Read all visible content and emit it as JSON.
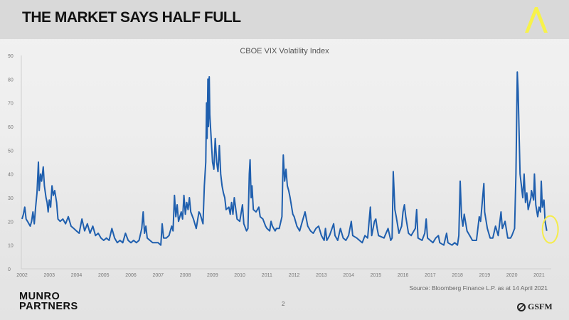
{
  "header": {
    "title": "THE MARKET SAYS HALF FULL"
  },
  "footer": {
    "source": "Source: Bloomberg Finance L.P. as at 14 April 2021",
    "page_number": "2",
    "left_logo": "MUNRO PARTNERS",
    "left_logo_line1": "MUNRO",
    "left_logo_line2": "PARTNERS",
    "right_logo": "GSFM"
  },
  "colors": {
    "line": "#1f5fae",
    "highlight": "#f5ec4a",
    "accent": "#f7f24a"
  },
  "chart_data": {
    "type": "line",
    "title": "CBOE VIX Volatility Index",
    "xlabel": "",
    "ylabel": "",
    "xlim": [
      2002,
      2021.3
    ],
    "ylim": [
      0,
      90
    ],
    "yticks": [
      0,
      10,
      20,
      30,
      40,
      50,
      60,
      70,
      80,
      90
    ],
    "xticks": [
      "2002",
      "2003",
      "2004",
      "2005",
      "2006",
      "2007",
      "2008",
      "2009",
      "2010",
      "2011",
      "2012",
      "2013",
      "2014",
      "2015",
      "2016",
      "2017",
      "2018",
      "2019",
      "2020",
      "2021"
    ],
    "grid": false,
    "annotation": "yellow circle highlighting latest value (April 2021)",
    "series": [
      {
        "name": "VIX",
        "points": [
          [
            2002.0,
            21
          ],
          [
            2002.05,
            23
          ],
          [
            2002.1,
            26
          ],
          [
            2002.15,
            21
          ],
          [
            2002.2,
            20
          ],
          [
            2002.3,
            18
          ],
          [
            2002.35,
            20
          ],
          [
            2002.4,
            24
          ],
          [
            2002.45,
            19
          ],
          [
            2002.5,
            26
          ],
          [
            2002.55,
            32
          ],
          [
            2002.6,
            45
          ],
          [
            2002.63,
            33
          ],
          [
            2002.68,
            40
          ],
          [
            2002.72,
            37
          ],
          [
            2002.78,
            43
          ],
          [
            2002.82,
            35
          ],
          [
            2002.88,
            30
          ],
          [
            2002.92,
            28
          ],
          [
            2002.96,
            24
          ],
          [
            2003.0,
            29
          ],
          [
            2003.05,
            26
          ],
          [
            2003.1,
            35
          ],
          [
            2003.15,
            31
          ],
          [
            2003.2,
            33
          ],
          [
            2003.27,
            28
          ],
          [
            2003.32,
            21
          ],
          [
            2003.4,
            20
          ],
          [
            2003.5,
            21
          ],
          [
            2003.6,
            19
          ],
          [
            2003.7,
            22
          ],
          [
            2003.8,
            18
          ],
          [
            2003.9,
            17
          ],
          [
            2004.0,
            16
          ],
          [
            2004.1,
            15
          ],
          [
            2004.2,
            21
          ],
          [
            2004.3,
            16
          ],
          [
            2004.4,
            19
          ],
          [
            2004.5,
            15
          ],
          [
            2004.6,
            18
          ],
          [
            2004.7,
            14
          ],
          [
            2004.8,
            15
          ],
          [
            2004.9,
            13
          ],
          [
            2005.0,
            12
          ],
          [
            2005.1,
            13
          ],
          [
            2005.2,
            12
          ],
          [
            2005.3,
            17
          ],
          [
            2005.4,
            13
          ],
          [
            2005.5,
            11
          ],
          [
            2005.6,
            12
          ],
          [
            2005.7,
            11
          ],
          [
            2005.8,
            15
          ],
          [
            2005.9,
            12
          ],
          [
            2006.0,
            11
          ],
          [
            2006.1,
            12
          ],
          [
            2006.2,
            11
          ],
          [
            2006.3,
            12
          ],
          [
            2006.4,
            17
          ],
          [
            2006.45,
            24
          ],
          [
            2006.5,
            15
          ],
          [
            2006.55,
            18
          ],
          [
            2006.6,
            13
          ],
          [
            2006.7,
            12
          ],
          [
            2006.8,
            11
          ],
          [
            2006.9,
            11
          ],
          [
            2007.0,
            11
          ],
          [
            2007.1,
            10
          ],
          [
            2007.15,
            19
          ],
          [
            2007.2,
            13
          ],
          [
            2007.3,
            13
          ],
          [
            2007.4,
            14
          ],
          [
            2007.5,
            18
          ],
          [
            2007.55,
            16
          ],
          [
            2007.6,
            31
          ],
          [
            2007.65,
            22
          ],
          [
            2007.7,
            27
          ],
          [
            2007.75,
            20
          ],
          [
            2007.85,
            24
          ],
          [
            2007.9,
            21
          ],
          [
            2007.95,
            31
          ],
          [
            2008.0,
            23
          ],
          [
            2008.05,
            28
          ],
          [
            2008.1,
            25
          ],
          [
            2008.15,
            30
          ],
          [
            2008.2,
            24
          ],
          [
            2008.3,
            21
          ],
          [
            2008.4,
            17
          ],
          [
            2008.5,
            24
          ],
          [
            2008.55,
            23
          ],
          [
            2008.6,
            21
          ],
          [
            2008.65,
            19
          ],
          [
            2008.7,
            35
          ],
          [
            2008.75,
            45
          ],
          [
            2008.78,
            70
          ],
          [
            2008.8,
            55
          ],
          [
            2008.83,
            80
          ],
          [
            2008.85,
            60
          ],
          [
            2008.88,
            81
          ],
          [
            2008.9,
            65
          ],
          [
            2008.95,
            55
          ],
          [
            2009.0,
            45
          ],
          [
            2009.05,
            42
          ],
          [
            2009.1,
            55
          ],
          [
            2009.15,
            45
          ],
          [
            2009.2,
            41
          ],
          [
            2009.25,
            52
          ],
          [
            2009.3,
            40
          ],
          [
            2009.35,
            35
          ],
          [
            2009.4,
            32
          ],
          [
            2009.45,
            30
          ],
          [
            2009.5,
            25
          ],
          [
            2009.6,
            26
          ],
          [
            2009.65,
            23
          ],
          [
            2009.7,
            28
          ],
          [
            2009.75,
            23
          ],
          [
            2009.8,
            30
          ],
          [
            2009.9,
            21
          ],
          [
            2010.0,
            20
          ],
          [
            2010.1,
            27
          ],
          [
            2010.15,
            19
          ],
          [
            2010.25,
            16
          ],
          [
            2010.3,
            17
          ],
          [
            2010.35,
            40
          ],
          [
            2010.38,
            46
          ],
          [
            2010.42,
            30
          ],
          [
            2010.45,
            35
          ],
          [
            2010.5,
            25
          ],
          [
            2010.6,
            24
          ],
          [
            2010.7,
            26
          ],
          [
            2010.75,
            22
          ],
          [
            2010.85,
            21
          ],
          [
            2010.95,
            18
          ],
          [
            2011.0,
            17
          ],
          [
            2011.1,
            16
          ],
          [
            2011.15,
            20
          ],
          [
            2011.2,
            18
          ],
          [
            2011.3,
            16
          ],
          [
            2011.35,
            17
          ],
          [
            2011.45,
            17
          ],
          [
            2011.55,
            22
          ],
          [
            2011.58,
            38
          ],
          [
            2011.6,
            48
          ],
          [
            2011.65,
            37
          ],
          [
            2011.7,
            42
          ],
          [
            2011.75,
            35
          ],
          [
            2011.8,
            33
          ],
          [
            2011.85,
            30
          ],
          [
            2011.95,
            23
          ],
          [
            2012.0,
            22
          ],
          [
            2012.1,
            18
          ],
          [
            2012.2,
            16
          ],
          [
            2012.3,
            20
          ],
          [
            2012.4,
            24
          ],
          [
            2012.45,
            21
          ],
          [
            2012.5,
            18
          ],
          [
            2012.6,
            16
          ],
          [
            2012.7,
            15
          ],
          [
            2012.8,
            17
          ],
          [
            2012.9,
            18
          ],
          [
            2013.0,
            14
          ],
          [
            2013.1,
            12
          ],
          [
            2013.15,
            17
          ],
          [
            2013.2,
            12
          ],
          [
            2013.3,
            14
          ],
          [
            2013.45,
            19
          ],
          [
            2013.5,
            14
          ],
          [
            2013.6,
            12
          ],
          [
            2013.7,
            17
          ],
          [
            2013.8,
            13
          ],
          [
            2013.9,
            12
          ],
          [
            2014.0,
            14
          ],
          [
            2014.1,
            20
          ],
          [
            2014.15,
            14
          ],
          [
            2014.3,
            13
          ],
          [
            2014.4,
            12
          ],
          [
            2014.5,
            11
          ],
          [
            2014.6,
            14
          ],
          [
            2014.7,
            13
          ],
          [
            2014.8,
            26
          ],
          [
            2014.85,
            14
          ],
          [
            2014.95,
            20
          ],
          [
            2015.0,
            21
          ],
          [
            2015.05,
            17
          ],
          [
            2015.1,
            14
          ],
          [
            2015.3,
            13
          ],
          [
            2015.45,
            17
          ],
          [
            2015.55,
            12
          ],
          [
            2015.6,
            13
          ],
          [
            2015.64,
            41
          ],
          [
            2015.7,
            25
          ],
          [
            2015.75,
            22
          ],
          [
            2015.85,
            15
          ],
          [
            2015.95,
            18
          ],
          [
            2016.0,
            24
          ],
          [
            2016.05,
            27
          ],
          [
            2016.1,
            22
          ],
          [
            2016.2,
            15
          ],
          [
            2016.3,
            14
          ],
          [
            2016.45,
            17
          ],
          [
            2016.5,
            25
          ],
          [
            2016.55,
            13
          ],
          [
            2016.7,
            12
          ],
          [
            2016.8,
            15
          ],
          [
            2016.85,
            21
          ],
          [
            2016.9,
            13
          ],
          [
            2017.0,
            12
          ],
          [
            2017.1,
            11
          ],
          [
            2017.2,
            13
          ],
          [
            2017.3,
            14
          ],
          [
            2017.35,
            11
          ],
          [
            2017.5,
            10
          ],
          [
            2017.6,
            15
          ],
          [
            2017.65,
            11
          ],
          [
            2017.8,
            10
          ],
          [
            2017.9,
            11
          ],
          [
            2018.0,
            10
          ],
          [
            2018.05,
            14
          ],
          [
            2018.1,
            37
          ],
          [
            2018.15,
            22
          ],
          [
            2018.2,
            18
          ],
          [
            2018.25,
            23
          ],
          [
            2018.35,
            16
          ],
          [
            2018.45,
            14
          ],
          [
            2018.55,
            12
          ],
          [
            2018.7,
            12
          ],
          [
            2018.8,
            22
          ],
          [
            2018.85,
            20
          ],
          [
            2018.97,
            36
          ],
          [
            2019.0,
            24
          ],
          [
            2019.1,
            17
          ],
          [
            2019.2,
            13
          ],
          [
            2019.3,
            13
          ],
          [
            2019.4,
            18
          ],
          [
            2019.5,
            14
          ],
          [
            2019.6,
            24
          ],
          [
            2019.65,
            17
          ],
          [
            2019.75,
            20
          ],
          [
            2019.85,
            13
          ],
          [
            2019.95,
            13
          ],
          [
            2020.0,
            14
          ],
          [
            2020.1,
            17
          ],
          [
            2020.15,
            40
          ],
          [
            2020.2,
            83
          ],
          [
            2020.23,
            75
          ],
          [
            2020.27,
            55
          ],
          [
            2020.3,
            40
          ],
          [
            2020.35,
            35
          ],
          [
            2020.4,
            30
          ],
          [
            2020.45,
            40
          ],
          [
            2020.5,
            28
          ],
          [
            2020.55,
            32
          ],
          [
            2020.6,
            25
          ],
          [
            2020.7,
            30
          ],
          [
            2020.72,
            33
          ],
          [
            2020.8,
            29
          ],
          [
            2020.83,
            40
          ],
          [
            2020.88,
            27
          ],
          [
            2020.95,
            22
          ],
          [
            2021.0,
            26
          ],
          [
            2021.05,
            24
          ],
          [
            2021.08,
            37
          ],
          [
            2021.12,
            26
          ],
          [
            2021.18,
            29
          ],
          [
            2021.22,
            20
          ],
          [
            2021.28,
            16
          ]
        ]
      }
    ]
  }
}
